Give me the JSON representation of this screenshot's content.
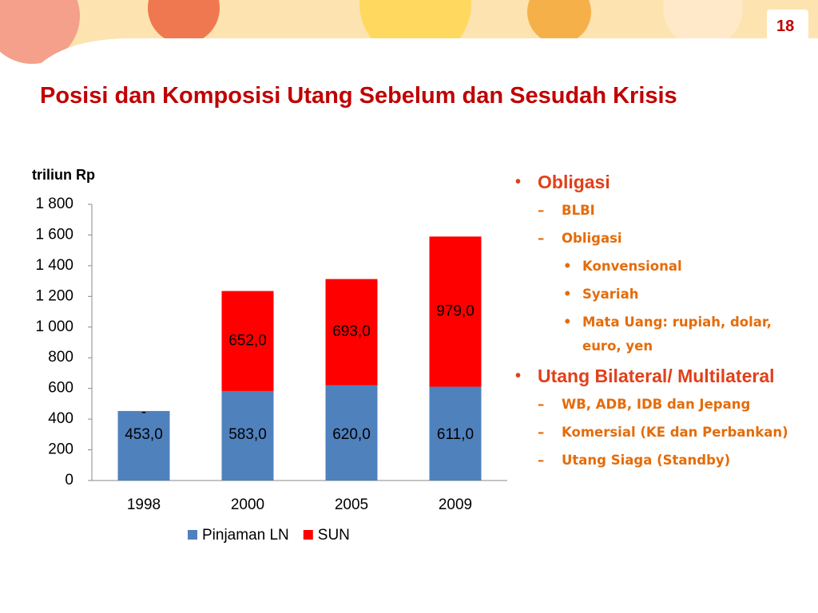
{
  "page_number": "18",
  "title": "Posisi dan Komposisi Utang Sebelum dan Sesudah Krisis",
  "chart_data": {
    "type": "stacked-bar",
    "y_label": "triliun Rp",
    "categories": [
      "1998",
      "2000",
      "2005",
      "2009"
    ],
    "series": [
      {
        "name": "Pinjaman LN",
        "color": "#4f81bd",
        "values": [
          453,
          583,
          620,
          611
        ],
        "value_labels": [
          "453,0",
          "583,0",
          "620,0",
          "611,0"
        ]
      },
      {
        "name": "SUN",
        "color": "#ff0000",
        "values": [
          0,
          652,
          693,
          979
        ],
        "value_labels": [
          "-",
          "652,0",
          "693,0",
          "979,0"
        ]
      }
    ],
    "ylim": [
      0,
      1800
    ],
    "yticks": [
      0,
      200,
      400,
      600,
      800,
      {
        "value": 1000,
        "label": "1 000"
      },
      {
        "value": 1200,
        "label": "1 200"
      },
      {
        "value": 1400,
        "label": "1 400"
      },
      {
        "value": 1600,
        "label": "1 600"
      },
      {
        "value": 1800,
        "label": "1 800"
      }
    ],
    "legend": "bottom"
  },
  "bullets": [
    {
      "text": "Obligasi",
      "items": [
        {
          "text": "BLBI"
        },
        {
          "text": "Obligasi",
          "items": [
            {
              "text": "Konvensional"
            },
            {
              "text": "Syariah"
            },
            {
              "text": "Mata Uang: rupiah, dolar, euro, yen"
            }
          ]
        }
      ]
    },
    {
      "text": "Utang Bilateral/ Multilateral",
      "items": [
        {
          "text": "WB, ADB, IDB dan Jepang"
        },
        {
          "text": "Komersial (KE dan Perbankan)"
        },
        {
          "text": "Utang Siaga (Standby)"
        }
      ]
    }
  ]
}
